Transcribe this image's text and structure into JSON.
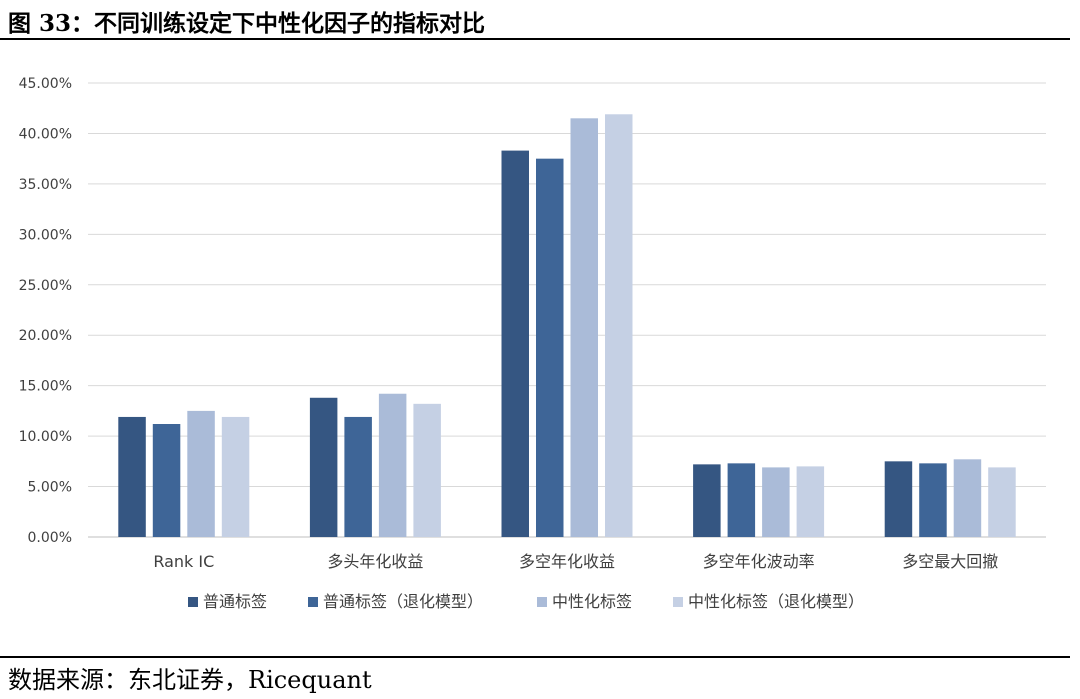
{
  "figure": {
    "title": "图 33：不同训练设定下中性化因子的指标对比",
    "source": "数据来源：东北证券，Ricequant"
  },
  "chart_data": {
    "type": "bar",
    "categories": [
      "Rank IC",
      "多头年化收益",
      "多空年化收益",
      "多空年化波动率",
      "多空最大回撤"
    ],
    "series": [
      {
        "name": "普通标签",
        "color": "#355682",
        "values": [
          11.9,
          13.8,
          38.3,
          7.2,
          7.5
        ]
      },
      {
        "name": "普通标签（退化模型）",
        "color": "#3e6597",
        "values": [
          11.2,
          11.9,
          37.5,
          7.3,
          7.3
        ]
      },
      {
        "name": "中性化标签",
        "color": "#aabbd8",
        "values": [
          12.5,
          14.2,
          41.5,
          6.9,
          7.7
        ]
      },
      {
        "name": "中性化标签（退化模型）",
        "color": "#c5d0e4",
        "values": [
          11.9,
          13.2,
          41.9,
          7.0,
          6.9
        ]
      }
    ],
    "ylim": [
      0,
      45
    ],
    "yticks": [
      0,
      5,
      10,
      15,
      20,
      25,
      30,
      35,
      40,
      45
    ],
    "ytick_labels": [
      "0.00%",
      "5.00%",
      "10.00%",
      "15.00%",
      "20.00%",
      "25.00%",
      "30.00%",
      "35.00%",
      "40.00%",
      "45.00%"
    ],
    "grid": true,
    "legend_position": "bottom"
  }
}
